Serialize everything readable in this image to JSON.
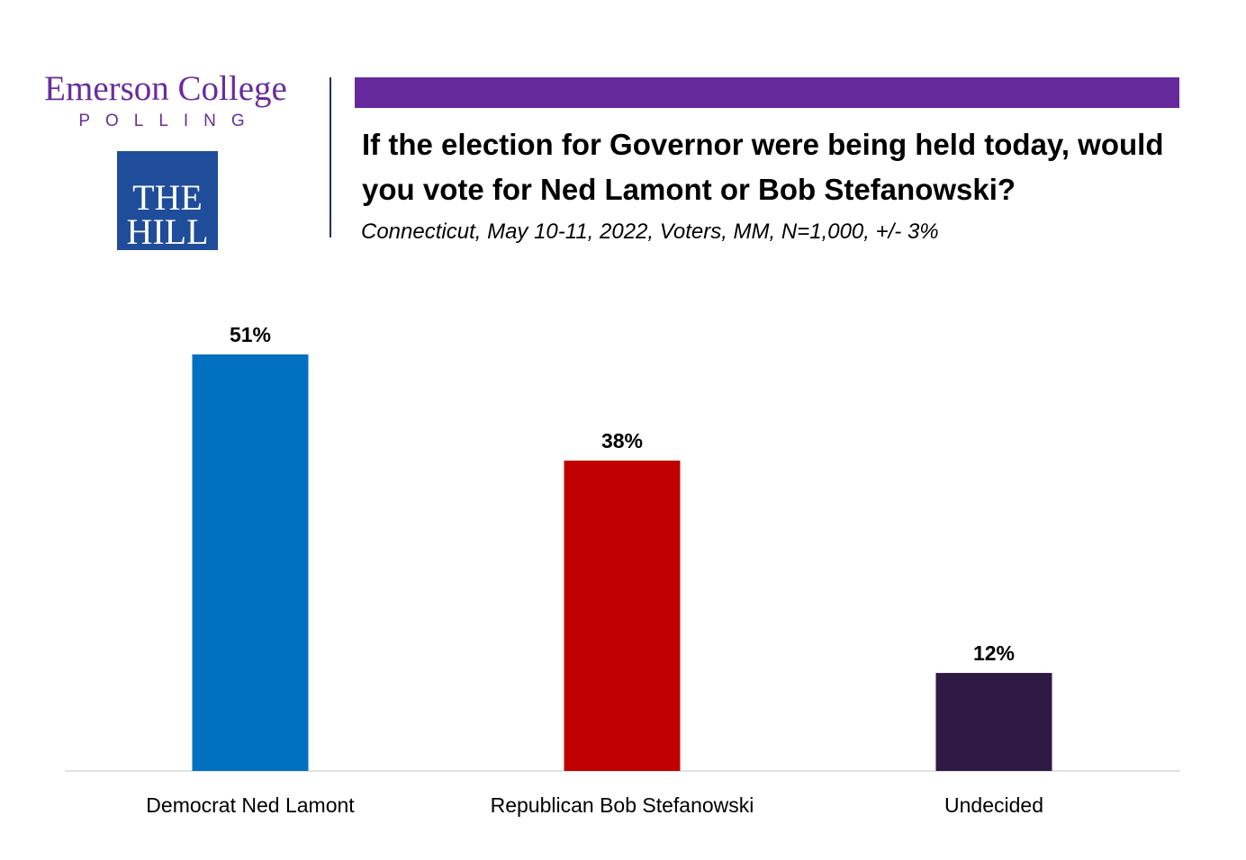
{
  "branding": {
    "emerson_line1": "Emerson College",
    "emerson_line2": "POLLING",
    "hill_line1": "THE",
    "hill_line2": "HILL",
    "accent_color": "#65299b",
    "hill_color": "#1f4d9a"
  },
  "chart_data": {
    "type": "bar",
    "title": "If the election for Governor were being held today, would you vote for Ned Lamont or Bob Stefanowski?",
    "subtitle": "Connecticut, May 10-11, 2022, Voters, MM, N=1,000, +/- 3%",
    "categories": [
      "Democrat Ned Lamont",
      "Republican Bob Stefanowski",
      "Undecided"
    ],
    "values": [
      51,
      38,
      12
    ],
    "value_labels": [
      "51%",
      "38%",
      "12%"
    ],
    "colors": [
      "#0070c0",
      "#c00000",
      "#2e1a45"
    ],
    "ylim": [
      0,
      55
    ],
    "grid": false,
    "legend": "none"
  }
}
